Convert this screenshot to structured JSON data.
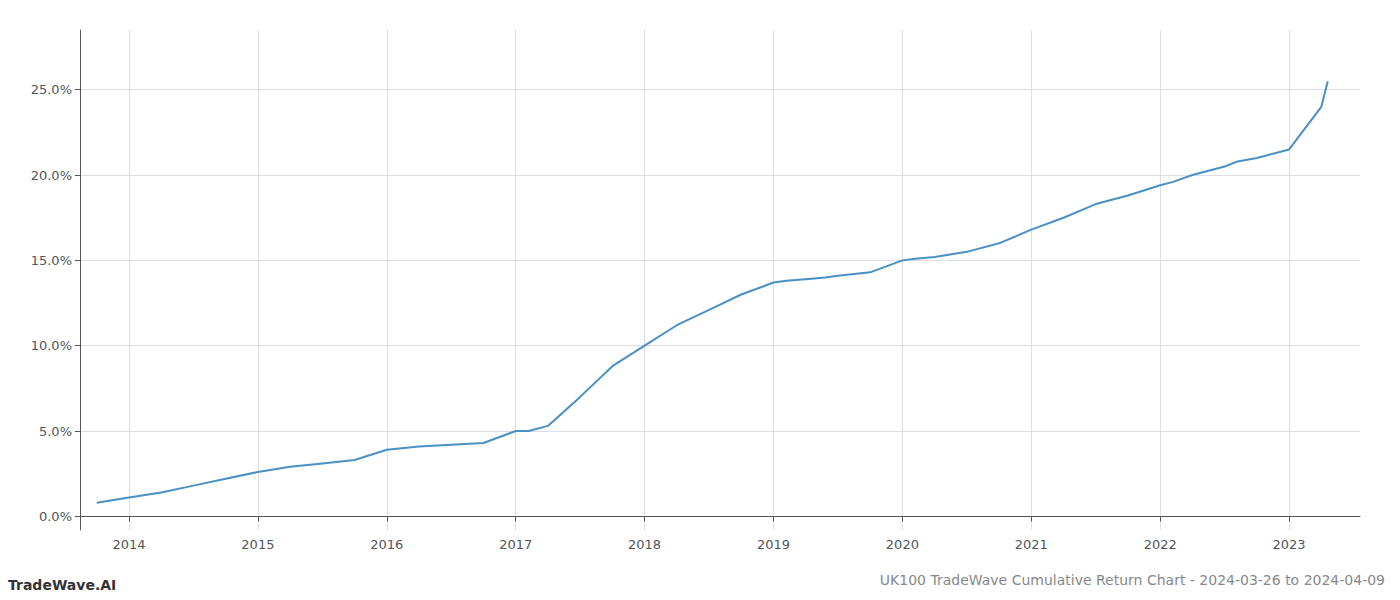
{
  "chart_data": {
    "type": "line",
    "title": "UK100 TradeWave Cumulative Return Chart - 2024-03-26 to 2024-04-09",
    "annotations": [
      "TradeWave.AI"
    ],
    "x": [
      2013.75,
      2014.0,
      2014.25,
      2014.5,
      2014.75,
      2015.0,
      2015.25,
      2015.5,
      2015.75,
      2016.0,
      2016.25,
      2016.5,
      2016.75,
      2017.0,
      2017.1,
      2017.25,
      2017.5,
      2017.75,
      2018.0,
      2018.25,
      2018.5,
      2018.75,
      2019.0,
      2019.1,
      2019.25,
      2019.4,
      2019.5,
      2019.75,
      2020.0,
      2020.1,
      2020.25,
      2020.5,
      2020.75,
      2021.0,
      2021.25,
      2021.5,
      2021.75,
      2022.0,
      2022.1,
      2022.25,
      2022.5,
      2022.6,
      2022.75,
      2023.0,
      2023.25,
      2023.3
    ],
    "values": [
      0.008,
      0.011,
      0.014,
      0.018,
      0.022,
      0.026,
      0.029,
      0.031,
      0.033,
      0.039,
      0.041,
      0.042,
      0.043,
      0.05,
      0.05,
      0.053,
      0.07,
      0.088,
      0.1,
      0.112,
      0.121,
      0.13,
      0.137,
      0.138,
      0.139,
      0.14,
      0.141,
      0.143,
      0.15,
      0.151,
      0.152,
      0.155,
      0.16,
      0.168,
      0.175,
      0.183,
      0.188,
      0.194,
      0.196,
      0.2,
      0.205,
      0.208,
      0.21,
      0.215,
      0.24,
      0.255
    ],
    "color": "#4a90c4",
    "xlim": [
      2013.62,
      2023.55
    ],
    "xticks": [
      2014,
      2015,
      2016,
      2017,
      2018,
      2019,
      2020,
      2021,
      2022,
      2023
    ],
    "ylim": [
      -0.008,
      0.285
    ],
    "yticks": [
      {
        "value": 0.0,
        "label": "0.0%"
      },
      {
        "value": 0.05,
        "label": "5.0%"
      },
      {
        "value": 0.1,
        "label": "10.0%"
      },
      {
        "value": 0.15,
        "label": "15.0%"
      },
      {
        "value": 0.2,
        "label": "20.0%"
      },
      {
        "value": 0.25,
        "label": "25.0%"
      }
    ],
    "grid": true
  }
}
